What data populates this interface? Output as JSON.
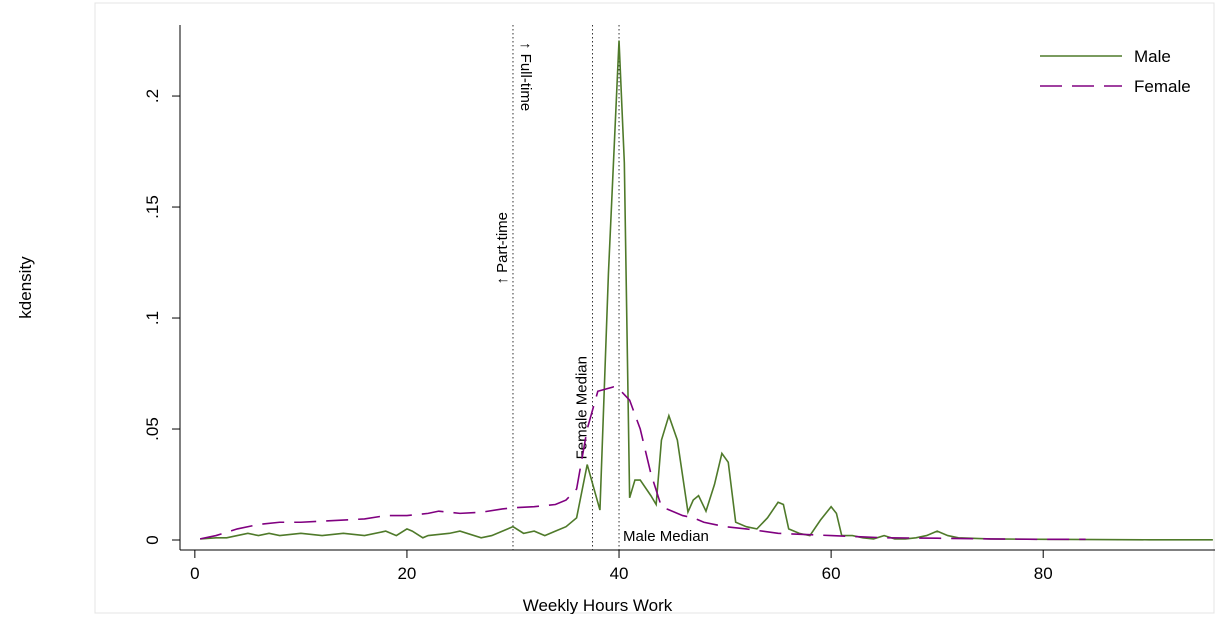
{
  "chart_data": {
    "type": "line",
    "x_label": "Weekly Hours Work",
    "y_label": "kdensity",
    "xlim": [
      -1.4,
      96.2
    ],
    "ylim": [
      -0.0045,
      0.232
    ],
    "xticks": [
      0,
      20,
      40,
      60,
      80
    ],
    "yticks": [
      0,
      {
        "value": 0.05,
        "label": ".05"
      },
      {
        "value": 0.1,
        "label": ".1"
      },
      {
        "value": 0.15,
        "label": ".15"
      },
      {
        "value": 0.2,
        "label": ".2"
      }
    ],
    "legend": "top-right",
    "reference_lines": [
      30,
      37.5,
      40
    ],
    "annotations": [
      {
        "text": "↑ Part-time",
        "x": 30,
        "rotate": -90
      },
      {
        "text": "↑ Full-time",
        "x": 30,
        "rotate": 90
      },
      {
        "text": "Female Median",
        "x": 37.5,
        "rotate": -90
      },
      {
        "text": "Male Median",
        "x": 40,
        "rotate": 0
      }
    ],
    "series": [
      {
        "name": "Male",
        "color": "#4f7a2a",
        "dash": "solid",
        "x": [
          0.5,
          2,
          3,
          4,
          5,
          6,
          7,
          8,
          10,
          12,
          14,
          16,
          18,
          19,
          20,
          20.5,
          21.5,
          22,
          24,
          25,
          27,
          28,
          30,
          31,
          32,
          33,
          34,
          35,
          36,
          37,
          38.2,
          39,
          40,
          40.5,
          41,
          41.5,
          42,
          43,
          43.5,
          44,
          44.7,
          45.5,
          46.5,
          47,
          47.5,
          48.2,
          49,
          49.7,
          50.3,
          51,
          52,
          53,
          54,
          55,
          55.5,
          56,
          57,
          58,
          59,
          60,
          60.5,
          61,
          62,
          63,
          64,
          65,
          66,
          67,
          68,
          69,
          70,
          71,
          72,
          75,
          80,
          85,
          90,
          96
        ],
        "values": [
          0.0005,
          0.001,
          0.001,
          0.002,
          0.003,
          0.002,
          0.003,
          0.002,
          0.003,
          0.002,
          0.003,
          0.002,
          0.004,
          0.002,
          0.005,
          0.004,
          0.001,
          0.002,
          0.003,
          0.004,
          0.001,
          0.002,
          0.006,
          0.003,
          0.004,
          0.002,
          0.004,
          0.006,
          0.01,
          0.034,
          0.0135,
          0.12,
          0.225,
          0.17,
          0.019,
          0.027,
          0.027,
          0.02,
          0.016,
          0.045,
          0.056,
          0.045,
          0.0126,
          0.018,
          0.02,
          0.013,
          0.025,
          0.039,
          0.035,
          0.008,
          0.006,
          0.005,
          0.01,
          0.017,
          0.016,
          0.005,
          0.003,
          0.002,
          0.009,
          0.015,
          0.012,
          0.002,
          0.002,
          0.001,
          0.0005,
          0.002,
          0.0005,
          0.0005,
          0.001,
          0.002,
          0.004,
          0.002,
          0.001,
          0.0005,
          0.0003,
          0.0002,
          0.0001,
          0.0001
        ]
      },
      {
        "name": "Female",
        "color": "#800080",
        "dash": "dashed",
        "x": [
          0.5,
          2,
          4,
          6,
          8,
          10,
          12,
          14,
          16,
          18,
          20,
          22,
          23,
          25,
          27,
          29,
          30,
          32,
          34,
          35,
          36,
          37,
          38,
          39.5,
          40,
          41,
          42,
          43,
          44,
          45,
          46,
          47,
          48,
          50,
          52,
          55,
          60,
          65,
          70,
          75,
          80,
          84
        ],
        "values": [
          0.0005,
          0.002,
          0.005,
          0.007,
          0.008,
          0.008,
          0.0085,
          0.009,
          0.0095,
          0.011,
          0.011,
          0.012,
          0.013,
          0.012,
          0.0125,
          0.014,
          0.0145,
          0.015,
          0.016,
          0.018,
          0.023,
          0.05,
          0.067,
          0.069,
          0.068,
          0.063,
          0.05,
          0.03,
          0.015,
          0.013,
          0.011,
          0.01,
          0.008,
          0.006,
          0.005,
          0.003,
          0.002,
          0.001,
          0.0008,
          0.0005,
          0.0003,
          0.0003
        ]
      }
    ]
  }
}
